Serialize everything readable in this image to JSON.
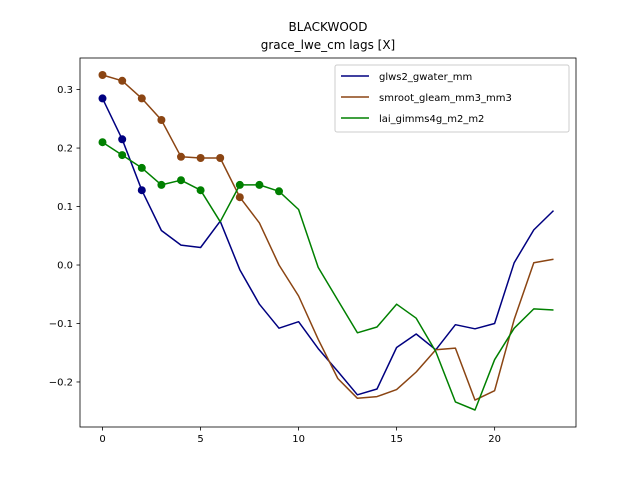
{
  "chart_data": {
    "type": "line",
    "title": "BLACKWOOD",
    "subtitle": "grace_lwe_cm lags [X]",
    "xlabel": "",
    "ylabel": "",
    "xlim": [
      -1.15,
      24.15
    ],
    "ylim": [
      -0.277,
      0.354
    ],
    "xticks": [
      0,
      5,
      10,
      15,
      20
    ],
    "yticks": [
      -0.2,
      -0.1,
      0.0,
      0.1,
      0.2,
      0.3
    ],
    "ytick_labels": [
      "−0.2",
      "−0.1",
      "0.0",
      "0.1",
      "0.2",
      "0.3"
    ],
    "grid": false,
    "legend_position": "top-right",
    "x": [
      0,
      1,
      2,
      3,
      4,
      5,
      6,
      7,
      8,
      9,
      10,
      11,
      12,
      13,
      14,
      15,
      16,
      17,
      18,
      19,
      20,
      21,
      22,
      23
    ],
    "series": [
      {
        "name": "glws2_gwater_mm",
        "color": "#000080",
        "values": [
          0.285,
          0.215,
          0.128,
          0.059,
          0.034,
          0.03,
          0.075,
          -0.008,
          -0.067,
          -0.108,
          -0.097,
          -0.143,
          -0.182,
          -0.222,
          -0.212,
          -0.141,
          -0.118,
          -0.145,
          -0.102,
          -0.109,
          -0.1,
          0.004,
          0.06,
          0.093
        ],
        "markers": [
          0,
          1,
          2
        ]
      },
      {
        "name": "smroot_gleam_mm3_mm3",
        "color": "#8B4513",
        "values": [
          0.325,
          0.315,
          0.285,
          0.248,
          0.185,
          0.183,
          0.183,
          0.116,
          0.072,
          0.0,
          -0.053,
          -0.127,
          -0.194,
          -0.228,
          -0.225,
          -0.213,
          -0.183,
          -0.145,
          -0.142,
          -0.231,
          -0.215,
          -0.093,
          0.004,
          0.01
        ],
        "markers": [
          0,
          1,
          2,
          3,
          4,
          5,
          6,
          7
        ]
      },
      {
        "name": "lai_gimms4g_m2_m2",
        "color": "#008000",
        "values": [
          0.21,
          0.188,
          0.166,
          0.137,
          0.145,
          0.128,
          0.074,
          0.137,
          0.137,
          0.126,
          0.095,
          -0.004,
          -0.06,
          -0.116,
          -0.106,
          -0.067,
          -0.091,
          -0.148,
          -0.234,
          -0.248,
          -0.162,
          -0.108,
          -0.075,
          -0.077
        ],
        "markers": [
          0,
          1,
          2,
          3,
          4,
          5,
          7,
          8,
          9
        ]
      }
    ]
  }
}
